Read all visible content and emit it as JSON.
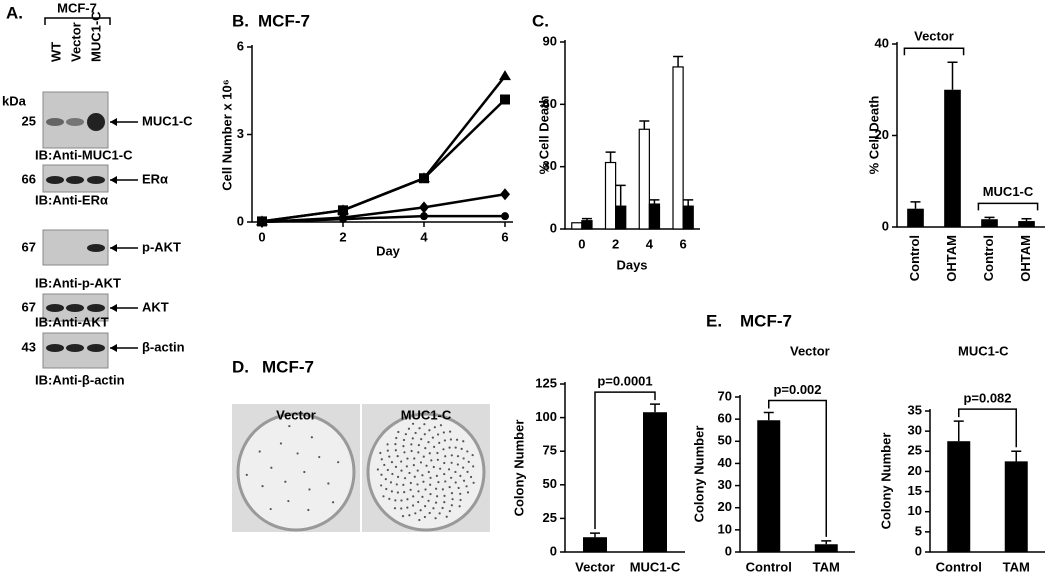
{
  "panel_a": {
    "label": "A.",
    "cell_line": "MCF-7",
    "lanes": [
      "WT",
      "Vector",
      "MUC1-C"
    ],
    "kda": "kDa",
    "blots": [
      {
        "mw": "25",
        "band": "MUC1-C",
        "ib": "IB:Anti-MUC1-C"
      },
      {
        "mw": "66",
        "band": "ERα",
        "ib": "IB:Anti-ERα"
      },
      {
        "mw": "67",
        "band": "p-AKT",
        "ib": "IB:Anti-p-AKT"
      },
      {
        "mw": "67",
        "band": "AKT",
        "ib": "IB:Anti-AKT"
      },
      {
        "mw": "43",
        "band": "β-actin",
        "ib": "IB:Anti-β-actin"
      }
    ]
  },
  "panel_d_images": {
    "labels": [
      "Vector",
      "MUC1-C"
    ]
  },
  "chart_data": [
    {
      "type": "line",
      "panel_label": "B.",
      "title": "MCF-7",
      "x": [
        0,
        2,
        4,
        6
      ],
      "xlim": [
        0,
        6
      ],
      "xticks": [
        0,
        2,
        4,
        6
      ],
      "ylim": [
        0,
        6
      ],
      "yticks": [
        0,
        3,
        6
      ],
      "xlabel": "Day",
      "ylabel": "Cell Number x 10⁶",
      "series": [
        {
          "color": "#000000",
          "marker": "triangle",
          "values": [
            0.02,
            0.4,
            1.5,
            5.0
          ]
        },
        {
          "color": "#000000",
          "marker": "square",
          "values": [
            0.02,
            0.4,
            1.5,
            4.2
          ]
        },
        {
          "color": "#000000",
          "marker": "diamond",
          "values": [
            0,
            0.15,
            0.5,
            0.95
          ]
        },
        {
          "color": "#000000",
          "marker": "circle",
          "values": [
            0,
            0.1,
            0.2,
            0.2
          ]
        }
      ]
    },
    {
      "type": "bar",
      "panel_label": "C.",
      "categories": [
        "0",
        "2",
        "4",
        "6"
      ],
      "ylim": [
        0,
        90
      ],
      "yticks": [
        0,
        30,
        60,
        90
      ],
      "xlabel": "Days",
      "ylabel": "% Cell Death",
      "series": [
        {
          "color": "#ffffff",
          "values": [
            3,
            32,
            48,
            78
          ],
          "errors": [
            0,
            5,
            4,
            5
          ]
        },
        {
          "color": "#000000",
          "values": [
            4,
            11,
            12,
            11
          ],
          "errors": [
            1,
            10,
            2,
            3
          ]
        }
      ]
    },
    {
      "type": "bar",
      "categories": [
        "Control",
        "OHTAM",
        "Control",
        "OHTAM"
      ],
      "values": [
        4,
        30,
        1.7,
        1.3
      ],
      "errors": [
        1.5,
        6,
        0.4,
        0.5
      ],
      "color": "#000000",
      "ylim": [
        0,
        40
      ],
      "yticks": [
        0,
        20,
        40
      ],
      "ylabel": "% Cell Death",
      "annotations": [
        "Vector",
        "MUC1-C"
      ]
    },
    {
      "type": "bar",
      "panel_label": "D.",
      "title": "MCF-7",
      "categories": [
        "Vector",
        "MUC1-C"
      ],
      "values": [
        11,
        104
      ],
      "errors": [
        3,
        6
      ],
      "color": "#000000",
      "ylim": [
        0,
        125
      ],
      "yticks": [
        0,
        25,
        50,
        75,
        100,
        125
      ],
      "ylabel": "Colony Number",
      "annotation": "p=0.0001"
    },
    {
      "type": "bar",
      "panel_label": "E.",
      "panel_title": "MCF-7",
      "title": "Vector",
      "categories": [
        "Control",
        "TAM"
      ],
      "values": [
        59.5,
        3.5
      ],
      "errors": [
        3.5,
        1.5
      ],
      "color": "#000000",
      "ylim": [
        0,
        70
      ],
      "yticks": [
        0,
        10,
        20,
        30,
        40,
        50,
        60,
        70
      ],
      "ylabel": "Colony Number",
      "annotation": "p=0.002"
    },
    {
      "type": "bar",
      "title": "MUC1-C",
      "categories": [
        "Control",
        "TAM"
      ],
      "values": [
        27.5,
        22.5
      ],
      "errors": [
        5,
        2.5
      ],
      "color": "#000000",
      "ylim": [
        0,
        35
      ],
      "yticks": [
        0,
        5,
        10,
        15,
        20,
        25,
        30,
        35
      ],
      "ylabel": "Colony Number",
      "annotation": "p=0.082"
    }
  ]
}
